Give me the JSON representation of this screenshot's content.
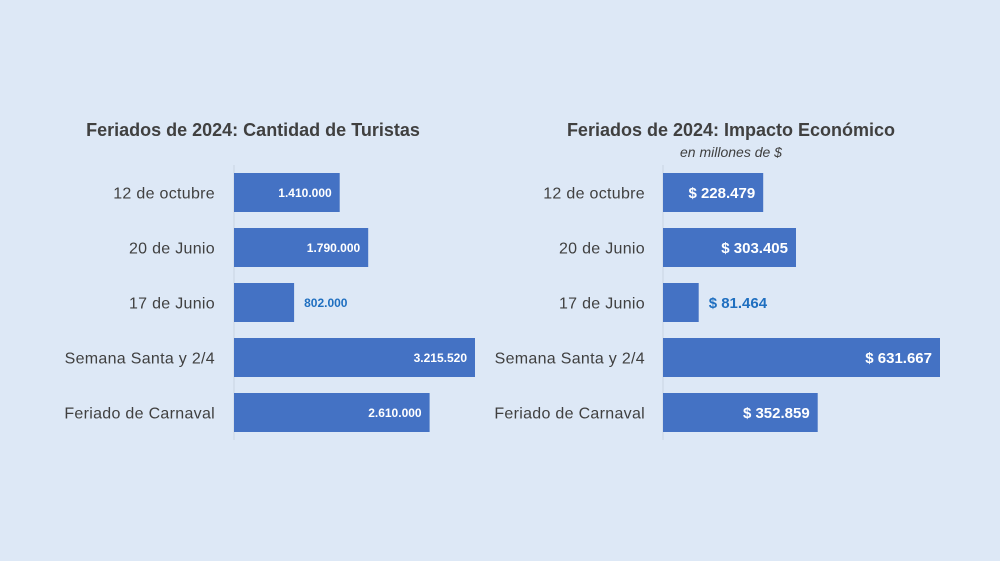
{
  "chart_data": [
    {
      "type": "bar",
      "orientation": "horizontal",
      "title": "Feriados de 2024: Cantidad de Turistas",
      "subtitle": "",
      "categories": [
        "12 de octubre",
        "20 de Junio",
        "17 de Junio",
        "Semana Santa y 2/4",
        "Feriado de Carnaval"
      ],
      "values": [
        1410000,
        1790000,
        802000,
        3215520,
        2610000
      ],
      "data_labels": [
        "1.410.000",
        "1.790.000",
        "802.000",
        "3.215.520",
        "2.610.000"
      ],
      "xlim": [
        0,
        3215520
      ],
      "bar_color": "#4472c4",
      "label_color_inside": "#ffffff",
      "label_color_outside": "#1f6fc0"
    },
    {
      "type": "bar",
      "orientation": "horizontal",
      "title": "Feriados de 2024: Impacto Económico",
      "subtitle": "en millones de $",
      "categories": [
        "12 de octubre",
        "20 de Junio",
        "17 de Junio",
        "Semana Santa y 2/4",
        "Feriado de Carnaval"
      ],
      "values": [
        228479,
        303405,
        81464,
        631667,
        352859
      ],
      "data_labels": [
        "$ 228.479",
        "$ 303.405",
        "$ 81.464",
        "$ 631.667",
        "$ 352.859"
      ],
      "xlim": [
        0,
        631667
      ],
      "bar_color": "#4472c4",
      "label_color_inside": "#ffffff",
      "label_color_outside": "#1f6fc0"
    }
  ]
}
